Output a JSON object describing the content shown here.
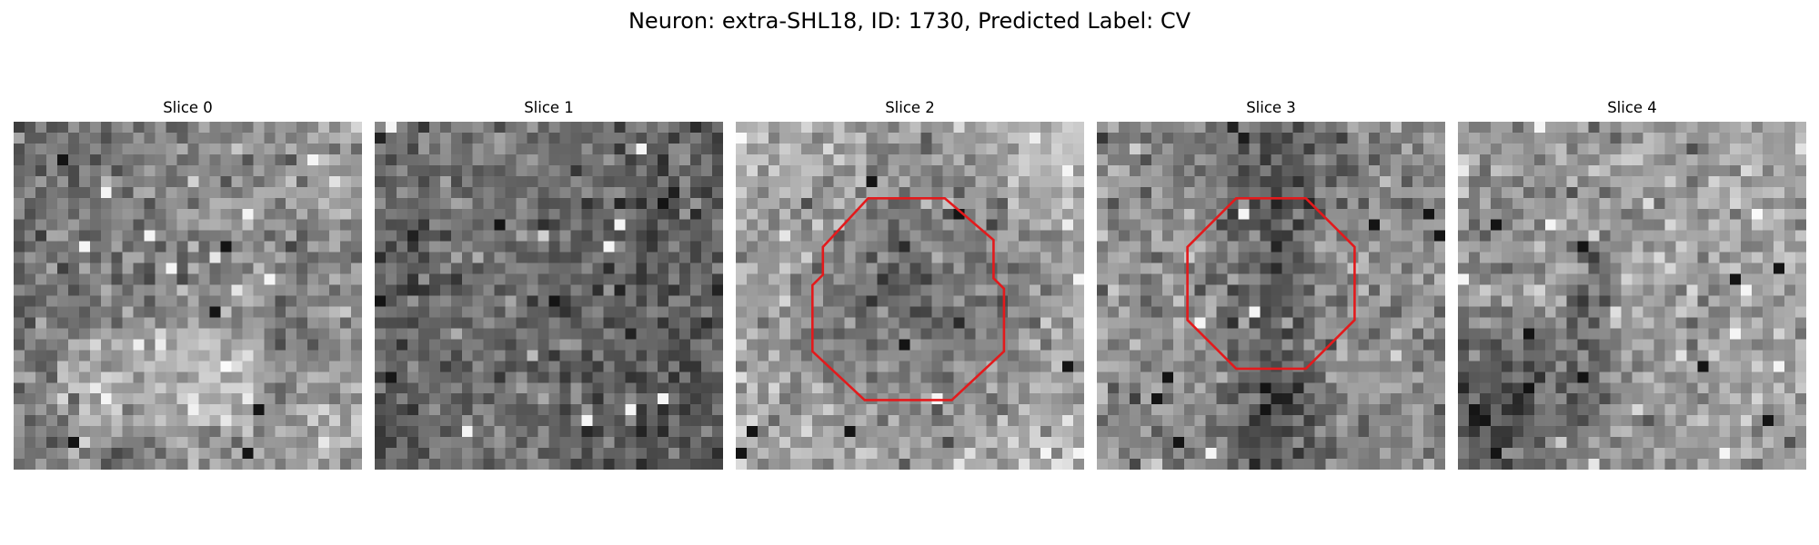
{
  "figure": {
    "title": "Neuron: extra-SHL18, ID: 1730, Predicted Label: CV"
  },
  "colors": {
    "background": "#ffffff",
    "contour": "#e31a1c",
    "colormap": "gray"
  },
  "slices": [
    {
      "label": "Slice 0",
      "has_contour": false
    },
    {
      "label": "Slice 1",
      "has_contour": false
    },
    {
      "label": "Slice 2",
      "has_contour": true
    },
    {
      "label": "Slice 3",
      "has_contour": true
    },
    {
      "label": "Slice 4",
      "has_contour": false
    }
  ]
}
